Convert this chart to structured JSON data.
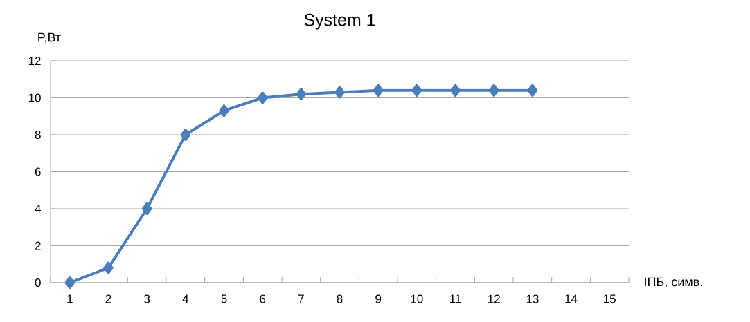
{
  "chart_data": {
    "type": "line",
    "title": "System 1",
    "xlabel": "ІПБ, симв.",
    "ylabel": "P,Вт",
    "categories": [
      "1",
      "2",
      "3",
      "4",
      "5",
      "6",
      "7",
      "8",
      "9",
      "10",
      "11",
      "12",
      "13",
      "14",
      "15"
    ],
    "series": [
      {
        "color": "#4a7ebb",
        "values": [
          0,
          0.8,
          4,
          8,
          9.3,
          10,
          10.2,
          10.3,
          10.4,
          10.4,
          10.4,
          10.4,
          10.4,
          null,
          null
        ]
      }
    ],
    "ylim": [
      0,
      12
    ],
    "yticks": [
      0,
      2,
      4,
      6,
      8,
      10,
      12
    ],
    "grid": "y",
    "marker": "diamond",
    "line_style": "solid"
  }
}
